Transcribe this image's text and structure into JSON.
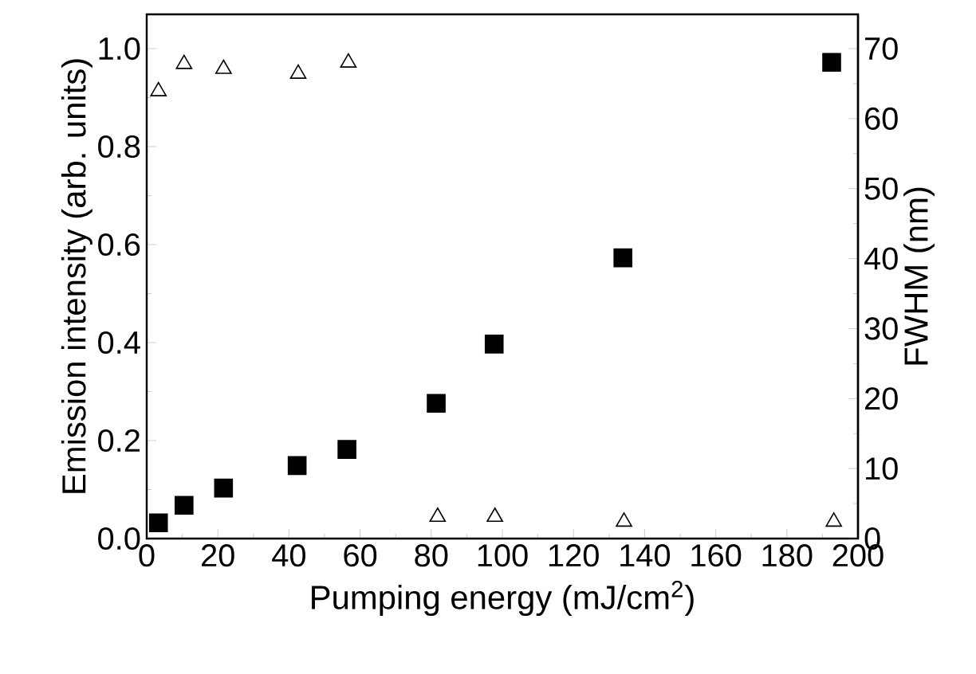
{
  "chart_data": {
    "type": "scatter",
    "xlabel": "Pumping energy (mJ/cm$^{2}$)",
    "ylabel": "Emission intensity (arb. units)",
    "y2label": "FWHM (nm)",
    "xlim": [
      0,
      200
    ],
    "ylim": [
      0,
      1.07
    ],
    "y2lim": [
      0,
      74.9
    ],
    "xticks": [
      0,
      20,
      40,
      60,
      80,
      100,
      120,
      140,
      160,
      180,
      200
    ],
    "yticks": [
      {
        "value": 0,
        "label": "0.0"
      },
      {
        "value": 0.2,
        "label": "0.2"
      },
      {
        "value": 0.4,
        "label": "0.4"
      },
      {
        "value": 0.6,
        "label": "0.6"
      },
      {
        "value": 0.8,
        "label": "0.8"
      },
      {
        "value": 1.0,
        "label": "1.0"
      }
    ],
    "y2ticks": [
      0,
      10,
      20,
      30,
      40,
      50,
      60,
      70
    ],
    "grid": false,
    "legend": false,
    "series": [
      {
        "color": "#000000",
        "marker": "square",
        "x": [
          3.3,
          10.5,
          21.6,
          42.3,
          56.3,
          81.4,
          97.7,
          133.9,
          192.6
        ],
        "values": [
          0.032,
          0.068,
          0.103,
          0.149,
          0.182,
          0.276,
          0.397,
          0.573,
          0.972
        ]
      },
      {
        "color": "#000000",
        "marker": "triangle",
        "axis": "y2",
        "x": [
          3.3,
          10.5,
          21.6,
          42.6,
          56.7,
          81.8,
          97.9,
          134.2,
          193.2
        ],
        "values": [
          63.9,
          67.8,
          67.1,
          66.4,
          68.0,
          3.1,
          3.1,
          2.4,
          2.4
        ]
      }
    ]
  }
}
